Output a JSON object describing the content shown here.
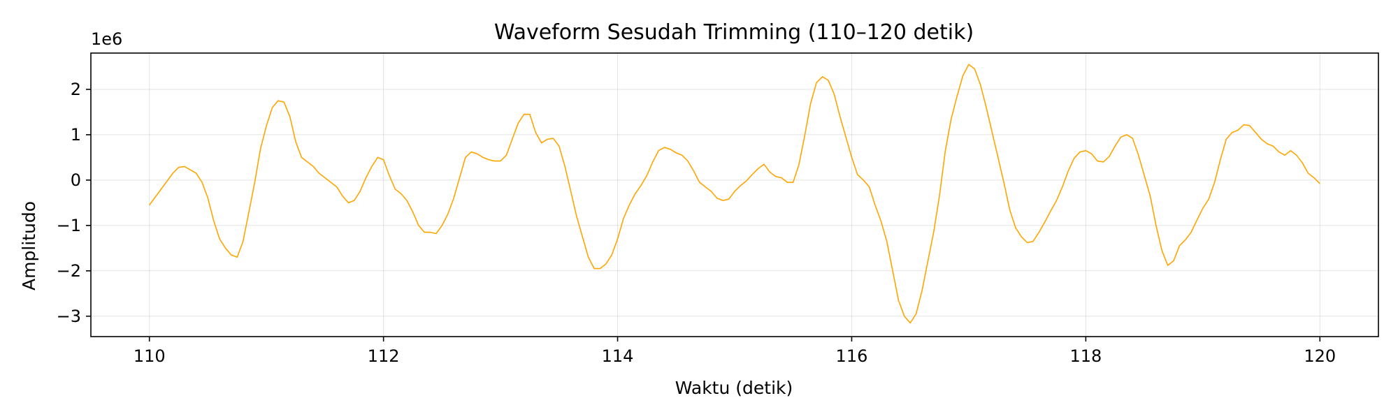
{
  "chart_data": {
    "type": "line",
    "title": "Waveform Sesudah Trimming (110–120 detik)",
    "xlabel": "Waktu (detik)",
    "ylabel": "Amplitudo",
    "y_offset_label": "1e6",
    "xlim": [
      109.5,
      120.5
    ],
    "ylim": [
      -3.45,
      2.8
    ],
    "xticks": [
      110,
      112,
      114,
      116,
      118,
      120
    ],
    "xtick_labels": [
      "110",
      "112",
      "114",
      "116",
      "118",
      "120"
    ],
    "yticks": [
      2,
      1,
      0,
      -1,
      -2,
      -3
    ],
    "ytick_labels": [
      "2",
      "1",
      "0",
      "−1",
      "−2",
      "−3"
    ],
    "grid": true,
    "color": "#ffa500",
    "series": [
      {
        "x": [
          110.0,
          110.1,
          110.2,
          110.25,
          110.3,
          110.4,
          110.45,
          110.5,
          110.55,
          110.6,
          110.65,
          110.7,
          110.75,
          110.8,
          110.85,
          110.9,
          110.95,
          111.0,
          111.05,
          111.1,
          111.15,
          111.2,
          111.25,
          111.3,
          111.35,
          111.4,
          111.45,
          111.5,
          111.55,
          111.6,
          111.65,
          111.7,
          111.75,
          111.8,
          111.85,
          111.9,
          111.95,
          112.0,
          112.05,
          112.1,
          112.15,
          112.2,
          112.25,
          112.3,
          112.35,
          112.4,
          112.45,
          112.5,
          112.55,
          112.6,
          112.65,
          112.7,
          112.75,
          112.8,
          112.85,
          112.9,
          112.95,
          113.0,
          113.05,
          113.1,
          113.15,
          113.2,
          113.25,
          113.3,
          113.35,
          113.4,
          113.45,
          113.5,
          113.55,
          113.6,
          113.65,
          113.7,
          113.75,
          113.8,
          113.85,
          113.9,
          113.95,
          114.0,
          114.05,
          114.1,
          114.15,
          114.2,
          114.25,
          114.3,
          114.35,
          114.4,
          114.45,
          114.5,
          114.55,
          114.6,
          114.65,
          114.7,
          114.75,
          114.8,
          114.85,
          114.9,
          114.95,
          115.0,
          115.05,
          115.1,
          115.15,
          115.2,
          115.25,
          115.3,
          115.35,
          115.4,
          115.45,
          115.5,
          115.55,
          115.6,
          115.65,
          115.7,
          115.75,
          115.8,
          115.85,
          115.9,
          115.95,
          116.0,
          116.05,
          116.1,
          116.15,
          116.2,
          116.25,
          116.3,
          116.35,
          116.4,
          116.45,
          116.5,
          116.55,
          116.6,
          116.65,
          116.7,
          116.75,
          116.8,
          116.85,
          116.9,
          116.95,
          117.0,
          117.05,
          117.1,
          117.15,
          117.2,
          117.25,
          117.3,
          117.35,
          117.4,
          117.45,
          117.5,
          117.55,
          117.6,
          117.65,
          117.7,
          117.75,
          117.8,
          117.85,
          117.9,
          117.95,
          118.0,
          118.05,
          118.1,
          118.15,
          118.2,
          118.25,
          118.3,
          118.35,
          118.4,
          118.45,
          118.5,
          118.55,
          118.6,
          118.65,
          118.7,
          118.75,
          118.8,
          118.85,
          118.9,
          118.95,
          119.0,
          119.05,
          119.1,
          119.15,
          119.2,
          119.25,
          119.3,
          119.35,
          119.4,
          119.45,
          119.5,
          119.55,
          119.6,
          119.65,
          119.7,
          119.75,
          119.8,
          119.85,
          119.9,
          119.95,
          120.0
        ],
        "y": [
          -0.55,
          -0.2,
          0.15,
          0.28,
          0.3,
          0.15,
          -0.05,
          -0.4,
          -0.9,
          -1.3,
          -1.5,
          -1.65,
          -1.7,
          -1.35,
          -0.7,
          -0.05,
          0.7,
          1.2,
          1.6,
          1.75,
          1.72,
          1.4,
          0.85,
          0.5,
          0.4,
          0.3,
          0.15,
          0.05,
          -0.05,
          -0.15,
          -0.35,
          -0.5,
          -0.45,
          -0.25,
          0.05,
          0.3,
          0.5,
          0.45,
          0.1,
          -0.2,
          -0.3,
          -0.45,
          -0.7,
          -1.0,
          -1.15,
          -1.15,
          -1.18,
          -1.0,
          -0.75,
          -0.4,
          0.05,
          0.5,
          0.62,
          0.58,
          0.5,
          0.45,
          0.42,
          0.42,
          0.55,
          0.9,
          1.25,
          1.45,
          1.45,
          1.05,
          0.82,
          0.9,
          0.92,
          0.75,
          0.3,
          -0.25,
          -0.8,
          -1.25,
          -1.7,
          -1.95,
          -1.95,
          -1.85,
          -1.65,
          -1.3,
          -0.85,
          -0.55,
          -0.3,
          -0.12,
          0.1,
          0.4,
          0.65,
          0.72,
          0.68,
          0.6,
          0.55,
          0.42,
          0.2,
          -0.05,
          -0.15,
          -0.25,
          -0.4,
          -0.45,
          -0.42,
          -0.25,
          -0.12,
          -0.02,
          0.12,
          0.25,
          0.35,
          0.18,
          0.08,
          0.05,
          -0.05,
          -0.05,
          0.35,
          1.0,
          1.7,
          2.15,
          2.28,
          2.2,
          1.9,
          1.4,
          0.95,
          0.5,
          0.12,
          0.0,
          -0.15,
          -0.55,
          -0.9,
          -1.35,
          -2.0,
          -2.65,
          -3.0,
          -3.15,
          -2.95,
          -2.45,
          -1.8,
          -1.15,
          -0.35,
          0.65,
          1.35,
          1.85,
          2.3,
          2.55,
          2.45,
          2.1,
          1.6,
          1.05,
          0.5,
          -0.05,
          -0.65,
          -1.05,
          -1.25,
          -1.38,
          -1.35,
          -1.15,
          -0.92,
          -0.68,
          -0.45,
          -0.15,
          0.2,
          0.48,
          0.62,
          0.65,
          0.58,
          0.42,
          0.4,
          0.52,
          0.75,
          0.95,
          1.0,
          0.92,
          0.55,
          0.1,
          -0.35,
          -1.0,
          -1.55,
          -1.88,
          -1.78,
          -1.45,
          -1.32,
          -1.15,
          -0.88,
          -0.62,
          -0.42,
          -0.05,
          0.45,
          0.9,
          1.05,
          1.1,
          1.22,
          1.2,
          1.05,
          0.9,
          0.8,
          0.75,
          0.62,
          0.55,
          0.65,
          0.55,
          0.38,
          0.15,
          0.05,
          -0.08
        ]
      }
    ]
  }
}
